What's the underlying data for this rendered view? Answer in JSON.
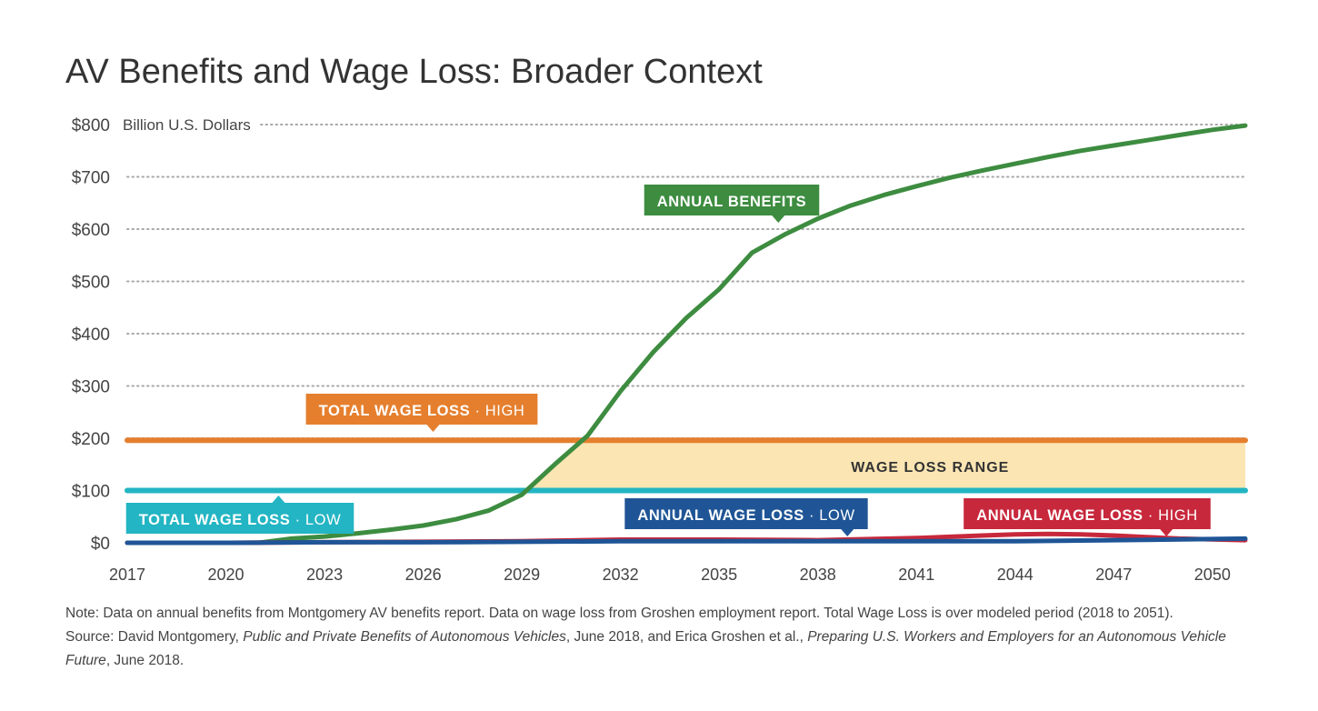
{
  "chart_data": {
    "type": "line",
    "title": "AV Benefits and Wage Loss: Broader Context",
    "ylabel": "Billion U.S. Dollars",
    "xlim": [
      2017,
      2051
    ],
    "ylim": [
      0,
      800
    ],
    "x_ticks": [
      "2017",
      "2020",
      "2023",
      "2026",
      "2029",
      "2032",
      "2035",
      "2038",
      "2041",
      "2044",
      "2047",
      "2050"
    ],
    "y_ticks": [
      {
        "value": 0,
        "label": "$0"
      },
      {
        "value": 100,
        "label": "$100"
      },
      {
        "value": 200,
        "label": "$200"
      },
      {
        "value": 300,
        "label": "$300"
      },
      {
        "value": 400,
        "label": "$400"
      },
      {
        "value": 500,
        "label": "$500"
      },
      {
        "value": 600,
        "label": "$600"
      },
      {
        "value": 700,
        "label": "$700"
      },
      {
        "value": 800,
        "label": "$800"
      }
    ],
    "grid": "dotted-horizontal",
    "series": [
      {
        "name": "ANNUAL BENEFITS",
        "color": "#3d8c40",
        "x": [
          2017,
          2018,
          2019,
          2020,
          2021,
          2022,
          2023,
          2024,
          2025,
          2026,
          2027,
          2028,
          2029,
          2030,
          2031,
          2032,
          2033,
          2034,
          2035,
          2036,
          2037,
          2038,
          2039,
          2040,
          2041,
          2042,
          2043,
          2044,
          2045,
          2046,
          2047,
          2048,
          2049,
          2050,
          2051
        ],
        "y": [
          0,
          0,
          0,
          0,
          0,
          8,
          12,
          18,
          25,
          33,
          45,
          62,
          92,
          150,
          205,
          290,
          365,
          430,
          485,
          555,
          590,
          620,
          645,
          665,
          682,
          698,
          712,
          725,
          738,
          750,
          760,
          770,
          780,
          790,
          798
        ]
      },
      {
        "name": "ANNUAL WAGE LOSS · HIGH",
        "color": "#c8283c",
        "x": [
          2017,
          2020,
          2023,
          2026,
          2029,
          2032,
          2035,
          2038,
          2041,
          2043,
          2044,
          2045,
          2046,
          2047,
          2048,
          2049,
          2051
        ],
        "y": [
          0,
          0,
          1,
          2,
          3,
          6,
          6,
          5,
          9,
          14,
          16,
          17,
          16,
          14,
          11,
          8,
          5
        ]
      },
      {
        "name": "ANNUAL WAGE LOSS · LOW",
        "color": "#1f5596",
        "x": [
          2017,
          2020,
          2023,
          2026,
          2029,
          2032,
          2035,
          2038,
          2041,
          2044,
          2047,
          2051
        ],
        "y": [
          0,
          0,
          1,
          1,
          2,
          3,
          3,
          3,
          3,
          3,
          5,
          8
        ]
      },
      {
        "name": "TOTAL WAGE LOSS · HIGH",
        "color": "#e57f2e",
        "x": [
          2017,
          2051
        ],
        "y": [
          196,
          196
        ]
      },
      {
        "name": "TOTAL WAGE LOSS · LOW",
        "color": "#23b5c3",
        "x": [
          2017,
          2051
        ],
        "y": [
          100,
          100
        ]
      }
    ],
    "range_band": {
      "label": "WAGE LOSS RANGE",
      "color": "#fbe5b3",
      "low": 100,
      "high": 196
    },
    "annotations": [
      {
        "main": "ANNUAL BENEFITS",
        "suffix": "",
        "color": "#3d8c40",
        "anchor_x": 2036.8,
        "anchor_y": 590,
        "pointer": "down"
      },
      {
        "main": "TOTAL WAGE LOSS",
        "suffix": " · HIGH",
        "color": "#e57f2e",
        "anchor_x": 2026.3,
        "anchor_y": 196,
        "pointer": "down"
      },
      {
        "main": "TOTAL WAGE LOSS",
        "suffix": " · LOW",
        "color": "#23b5c3",
        "anchor_x": 2021.6,
        "anchor_y": 100,
        "pointer": "up"
      },
      {
        "main": "ANNUAL WAGE LOSS",
        "suffix": " · LOW",
        "color": "#1f5596",
        "anchor_x": 2038.9,
        "anchor_y": 3,
        "pointer": "down"
      },
      {
        "main": "ANNUAL WAGE LOSS",
        "suffix": " · HIGH",
        "color": "#c8283c",
        "anchor_x": 2048.6,
        "anchor_y": 9,
        "pointer": "down"
      }
    ]
  },
  "notes": {
    "note": "Note: Data on annual benefits from Montgomery AV benefits report. Data on wage loss from Groshen employment report. Total Wage Loss is over modeled period (2018 to 2051).",
    "source_prefix": "Source: David Montgomery, ",
    "source_title1": "Public and Private Benefits of Autonomous Vehicles",
    "source_mid": ", June 2018, and Erica Groshen et al., ",
    "source_title2": "Preparing U.S. Workers and Employers for an Autonomous Vehicle Future",
    "source_suffix": ", June 2018."
  }
}
